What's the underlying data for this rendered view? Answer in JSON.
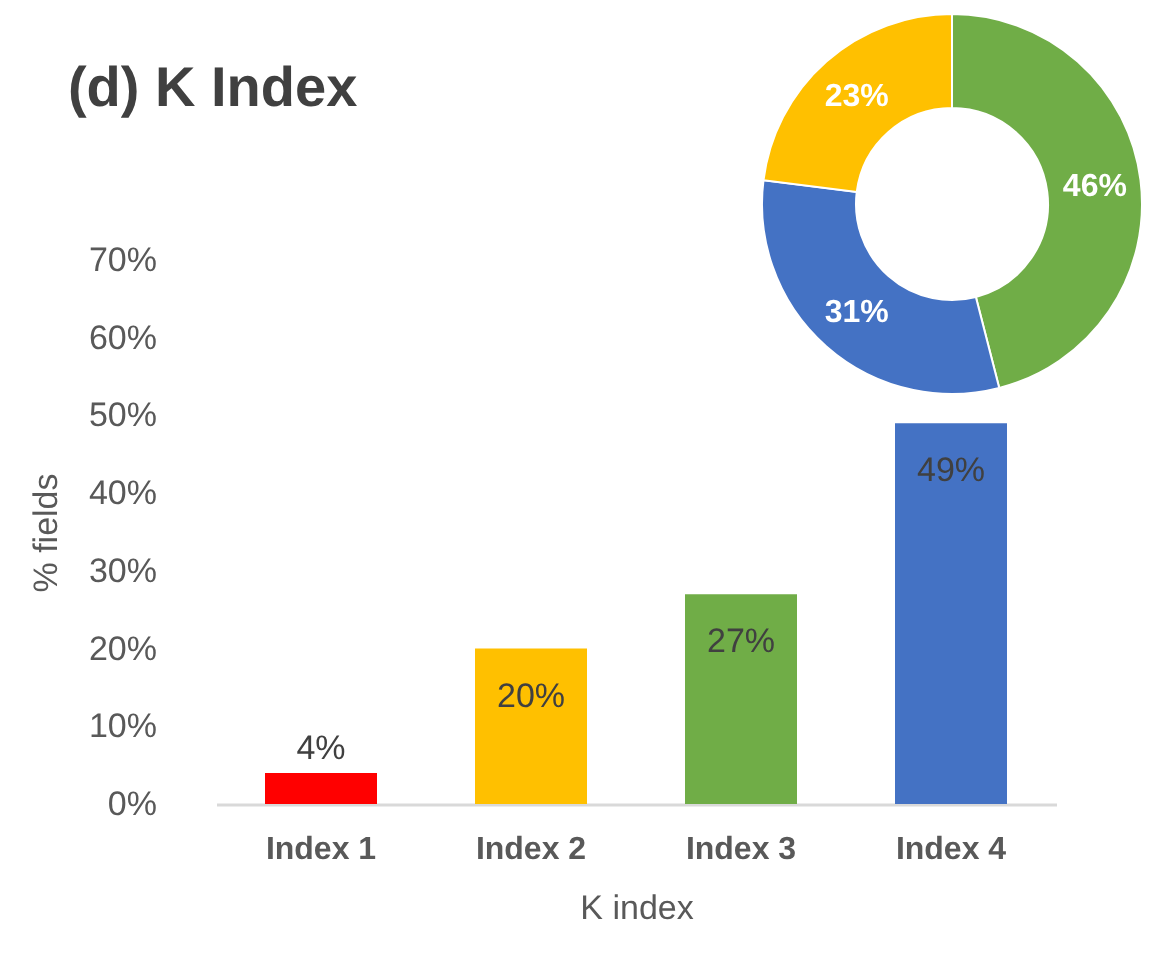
{
  "chart_data": [
    {
      "type": "bar",
      "title": "(d) K Index",
      "xlabel": "K index",
      "ylabel": "% fields",
      "categories": [
        "Index 1",
        "Index 2",
        "Index 3",
        "Index 4"
      ],
      "values": [
        4,
        20,
        27,
        49
      ],
      "colors": [
        "#ff0000",
        "#ffc000",
        "#70ad47",
        "#4472c4"
      ],
      "value_labels": [
        "4%",
        "20%",
        "27%",
        "49%"
      ],
      "ylim": [
        0,
        70
      ],
      "yticks": [
        {
          "value": 0,
          "label": "0%"
        },
        {
          "value": 10,
          "label": "10%"
        },
        {
          "value": 20,
          "label": "20%"
        },
        {
          "value": 30,
          "label": "30%"
        },
        {
          "value": 40,
          "label": "40%"
        },
        {
          "value": 50,
          "label": "50%"
        },
        {
          "value": 60,
          "label": "60%"
        },
        {
          "value": 70,
          "label": "70%"
        }
      ],
      "grid": false
    },
    {
      "type": "donut",
      "categories": [
        null,
        null,
        null
      ],
      "values": [
        46,
        31,
        23
      ],
      "colors": [
        "#70ad47",
        "#4472c4",
        "#ffc000"
      ],
      "value_labels": [
        "46%",
        "31%",
        "23%"
      ]
    }
  ]
}
